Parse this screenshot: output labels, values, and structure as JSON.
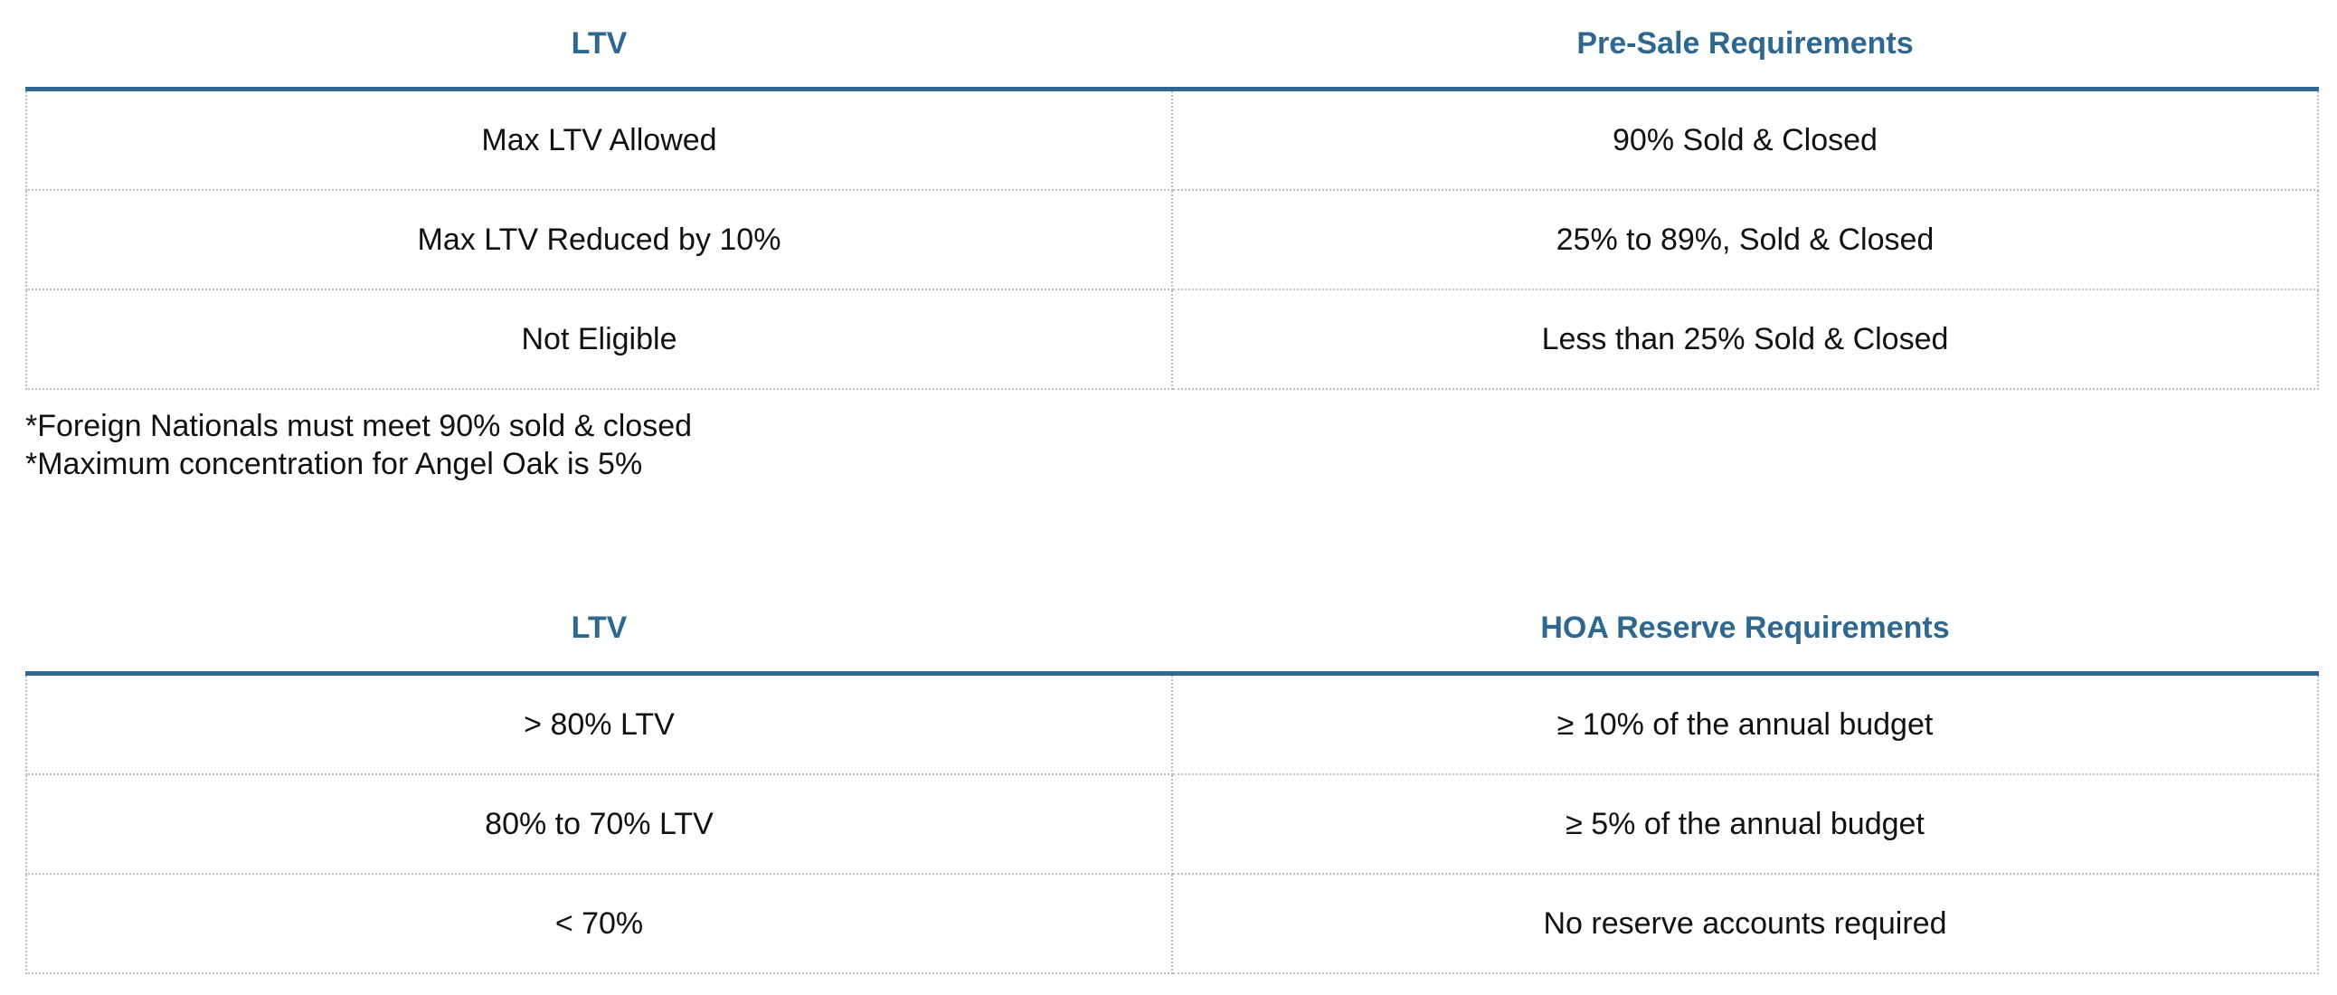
{
  "presale_table": {
    "headers": [
      "LTV",
      "Pre-Sale Requirements"
    ],
    "rows": [
      [
        "Max LTV Allowed",
        "90% Sold & Closed"
      ],
      [
        "Max LTV Reduced by 10%",
        "25% to 89%, Sold & Closed"
      ],
      [
        "Not Eligible",
        "Less than 25% Sold & Closed"
      ]
    ]
  },
  "notes": [
    "*Foreign Nationals must meet 90% sold & closed",
    "*Maximum concentration for Angel Oak is 5%"
  ],
  "hoa_table": {
    "headers": [
      "LTV",
      "HOA Reserve Requirements"
    ],
    "rows": [
      [
        "> 80% LTV",
        "≥ 10% of the annual budget"
      ],
      [
        "80% to 70% LTV",
        "≥ 5% of the annual budget"
      ],
      [
        "< 70%",
        "No reserve accounts required"
      ]
    ]
  },
  "colors": {
    "header_text": "#2e6890",
    "header_rule": "#2e6890",
    "cell_border": "#bdbdbd",
    "body_text": "#111111"
  }
}
